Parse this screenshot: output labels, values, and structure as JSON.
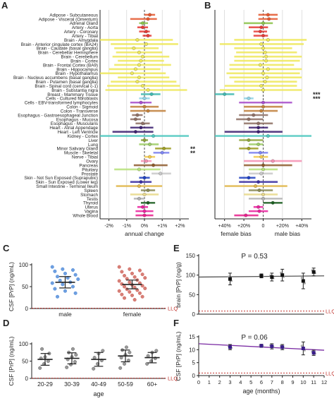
{
  "colors": {
    "yellow": "#efe85a",
    "axis": "#222222",
    "llq": "#c0302b",
    "panelF_line": "#7a2ba3",
    "gridline": "#cccccc"
  },
  "panel_labels": [
    "A",
    "B",
    "C",
    "D",
    "E",
    "F"
  ],
  "chart_data": [
    {
      "panel": "A",
      "type": "scatter",
      "subtype": "forest-plot",
      "xlabel": "annual change",
      "xlim": [
        -2.5,
        2.5
      ],
      "x_ticks": [
        -2,
        -1,
        0,
        1,
        2
      ],
      "x_tick_labels": [
        "-2%",
        "-1%",
        "0%",
        "+1%",
        "+2%"
      ],
      "grid": "vertical dashed",
      "tissues": [
        "Adipose - Subcutaneous",
        "Adipose - Visceral (Omentum)",
        "Adrenal Gland",
        "Artery - Aorta",
        "Artery - Coronary",
        "Artery - Tibial",
        "Brain - Amygdala",
        "Brain - Anterior cingulate cortex (BA24)",
        "Brain - Caudate (basal ganglia)",
        "Brain - Cerebellar Hemisphere",
        "Brain - Cerebellum",
        "Brain - Cortex",
        "Brain - Frontal Cortex (BA9)",
        "Brain - Hippocampus",
        "Brain - Hypothalamus",
        "Brain - Nucleus accumbens (basal ganglia)",
        "Brain - Putamen (basal ganglia)",
        "Brain - Spinal cord (cervical c-1)",
        "Brain - Substantia nigra",
        "Breast - Mammary Tissue",
        "Cells - Cultured fibroblasts",
        "Cells - EBV-transformed lymphocytes",
        "Colon - Sigmoid",
        "Colon - Transverse",
        "Esophagus - Gastroesophageal Junction",
        "Esophagus - Mucosa",
        "Esophagus - Muscularis",
        "Heart - Atrial Appendage",
        "Heart - Left Ventricle",
        "Kidney - Cortex",
        "Liver",
        "Lung",
        "Minor Salivary Gland",
        "Muscle - Skeletal",
        "Nerve - Tibial",
        "Ovary",
        "Pancreas",
        "Pituitary",
        "Prostate",
        "Skin - Not Sun Exposed (Suprapubic)",
        "Skin - Sun Exposed (Lower leg)",
        "Small Intestine - Terminal Ileum",
        "Spleen",
        "Stomach",
        "Testis",
        "Thyroid",
        "Uterus",
        "Vagina",
        "Whole Blood"
      ],
      "colors": [
        "#e4572e",
        "#e4572e",
        "#8bc34a",
        "#e53935",
        "#e53935",
        "#e53935",
        "#efe85a",
        "#efe85a",
        "#efe85a",
        "#efe85a",
        "#efe85a",
        "#efe85a",
        "#efe85a",
        "#efe85a",
        "#efe85a",
        "#efe85a",
        "#efe85a",
        "#efe85a",
        "#efe85a",
        "#3fb8b0",
        "#8fd3e6",
        "#a64ac9",
        "#c07f3a",
        "#c07f3a",
        "#8d6e63",
        "#8d6e63",
        "#8d6e63",
        "#3b1f6e",
        "#3b1f6e",
        "#4fc8c0",
        "#8da33a",
        "#9ccc65",
        "#9e9d24",
        "#7c83f0",
        "#f2c94c",
        "#f48fb1",
        "#8d5a2b",
        "#b6e07a",
        "#c8c8c8",
        "#1f3fbf",
        "#3a2da0",
        "#e0b64a",
        "#8a8a55",
        "#e9d98b",
        "#b0b0b0",
        "#1b5e20",
        "#e91e9c",
        "#e91e9c",
        "#e81e8c"
      ],
      "estimates": [
        0.3,
        0.2,
        -0.1,
        -0.1,
        0.1,
        0.2,
        -0.4,
        0.1,
        -0.6,
        -0.3,
        -0.1,
        -0.2,
        -0.3,
        -0.5,
        -0.7,
        -0.3,
        -0.4,
        -0.1,
        0.2,
        0.4,
        0.0,
        -0.2,
        0.0,
        0.2,
        -0.4,
        -0.5,
        -0.1,
        -0.2,
        -0.5,
        0.5,
        0.0,
        0.3,
        1.1,
        1.0,
        0.3,
        0.1,
        0.5,
        -0.3,
        0.9,
        0.0,
        -0.2,
        -0.3,
        0.2,
        0.0,
        -0.3,
        0.2,
        -0.1,
        0.0,
        0.0
      ],
      "ci_low": [
        0.0,
        -0.8,
        -0.3,
        -0.4,
        -0.3,
        -0.1,
        -2.5,
        -1.9,
        -1.7,
        -1.6,
        -1.8,
        -1.5,
        -1.7,
        -2.0,
        -2.5,
        -1.5,
        -1.9,
        -2.1,
        -2.2,
        -0.2,
        -0.3,
        -0.8,
        -0.8,
        -0.8,
        -0.7,
        -0.8,
        -0.5,
        -0.8,
        -1.8,
        -2.5,
        -0.2,
        -0.3,
        0.6,
        0.5,
        0.0,
        -0.2,
        -0.6,
        -1.7,
        0.4,
        -0.3,
        -0.8,
        -1.6,
        -0.2,
        -0.8,
        -0.6,
        -0.2,
        -0.4,
        -0.5,
        -0.5
      ],
      "ci_high": [
        0.6,
        0.7,
        0.2,
        0.2,
        0.3,
        0.4,
        1.6,
        1.9,
        0.8,
        1.0,
        1.4,
        1.1,
        1.5,
        0.9,
        1.2,
        1.4,
        1.8,
        2.0,
        2.4,
        0.9,
        0.3,
        0.4,
        0.8,
        1.2,
        -0.1,
        -0.2,
        0.3,
        0.5,
        0.5,
        2.5,
        0.2,
        0.8,
        1.5,
        1.4,
        0.6,
        0.4,
        1.3,
        0.9,
        1.5,
        0.3,
        0.4,
        1.0,
        0.6,
        0.8,
        0.0,
        0.6,
        0.2,
        0.5,
        0.5
      ],
      "significance": [
        {
          "row": 32,
          "text": "**"
        },
        {
          "row": 33,
          "text": "**"
        }
      ]
    },
    {
      "panel": "B",
      "type": "scatter",
      "subtype": "forest-plot",
      "xlabel_left": "female bias",
      "xlabel_right": "male bias",
      "xlim": [
        -50,
        50
      ],
      "x_ticks": [
        -40,
        -20,
        0,
        20,
        40
      ],
      "x_tick_labels": [
        "+40%",
        "+20%",
        "0",
        "+20%",
        "+40%"
      ],
      "estimates": [
        5,
        6,
        0,
        -2,
        -3,
        0,
        5,
        -2,
        0,
        2,
        3,
        3,
        -3,
        5,
        0,
        4,
        2,
        -2,
        0,
        -40,
        -15,
        0,
        0,
        -2,
        -10,
        -15,
        -5,
        -5,
        -5,
        5,
        -15,
        -5,
        -15,
        -3,
        -2,
        10,
        0,
        0,
        -2,
        -15,
        -5,
        -8,
        -4,
        0,
        0,
        10,
        -5,
        -4,
        -18
      ],
      "ci_low": [
        -5,
        -5,
        -20,
        -15,
        -10,
        -10,
        -30,
        -45,
        -30,
        -28,
        -30,
        -30,
        -35,
        -35,
        -38,
        -35,
        -30,
        -40,
        -45,
        -50,
        -20,
        -25,
        -20,
        -20,
        -25,
        -28,
        -20,
        -15,
        -40,
        -50,
        -25,
        -15,
        -25,
        -15,
        -10,
        -20,
        -20,
        -15,
        -15,
        -25,
        -25,
        -40,
        -15,
        -20,
        -15,
        0,
        -10,
        -15,
        -30
      ],
      "ci_high": [
        15,
        15,
        10,
        5,
        4,
        5,
        45,
        42,
        30,
        35,
        40,
        38,
        32,
        40,
        38,
        40,
        35,
        35,
        40,
        -30,
        -10,
        30,
        20,
        15,
        5,
        0,
        10,
        5,
        20,
        50,
        0,
        0,
        -5,
        5,
        5,
        40,
        30,
        15,
        10,
        -8,
        15,
        25,
        10,
        15,
        20,
        20,
        0,
        5,
        -5
      ],
      "significance": [
        {
          "row": 19,
          "text": "***"
        },
        {
          "row": 20,
          "text": "***"
        }
      ]
    },
    {
      "panel": "C",
      "type": "scatter",
      "ylabel": "CSF [PrP] (ng/mL)",
      "ylim": [
        0,
        100
      ],
      "y_ticks": [
        0,
        50,
        100
      ],
      "categories": [
        "male",
        "female"
      ],
      "colors": [
        "#3d7fd6",
        "#c9544a"
      ],
      "means": [
        60,
        55
      ],
      "sem_low": [
        47,
        45
      ],
      "sem_high": [
        73,
        65
      ],
      "points": [
        [
          95,
          90,
          88,
          85,
          80,
          77,
          73,
          70,
          67,
          64,
          60,
          58,
          55,
          50,
          45,
          40,
          35,
          27
        ],
        [
          95,
          90,
          87,
          84,
          80,
          78,
          75,
          72,
          70,
          68,
          65,
          63,
          60,
          58,
          56,
          54,
          52,
          50,
          48,
          46,
          44,
          42,
          40,
          38,
          35,
          32,
          30,
          27,
          24,
          20
        ]
      ],
      "llq_label": "LLQ",
      "llq_value": 0.8
    },
    {
      "panel": "D",
      "type": "scatter",
      "ylabel": "CSF [PrP] (ng/mL)",
      "xlabel": "age",
      "ylim": [
        0,
        100
      ],
      "y_ticks": [
        0,
        50,
        100
      ],
      "categories": [
        "20-29",
        "30-39",
        "40-49",
        "50-59",
        "60+"
      ],
      "means": [
        55,
        58,
        55,
        65,
        60
      ],
      "sem_low": [
        38,
        42,
        35,
        48,
        45
      ],
      "sem_high": [
        72,
        74,
        75,
        82,
        75
      ],
      "points": [
        [
          30,
          42,
          50,
          58,
          62,
          72,
          85
        ],
        [
          32,
          40,
          48,
          55,
          62,
          68,
          75,
          85
        ],
        [
          28,
          42,
          52,
          60,
          72,
          80
        ],
        [
          30,
          42,
          52,
          60,
          68,
          75,
          82,
          90
        ],
        [
          42,
          50,
          58,
          65,
          75,
          80
        ]
      ],
      "llq_label": "LLQ",
      "llq_value": 0.8
    },
    {
      "panel": "E",
      "type": "scatter",
      "title": "P = 0.53",
      "ylabel": "brain [PrP] (ng/g)",
      "ylim": [
        0,
        150
      ],
      "y_ticks": [
        0,
        50,
        100,
        150
      ],
      "xlim": [
        0,
        12
      ],
      "trend": [
        95,
        98
      ],
      "means_x": [
        3,
        6,
        7,
        8,
        10,
        11
      ],
      "means": [
        90,
        98,
        95,
        100,
        85,
        108
      ],
      "err": [
        15,
        5,
        10,
        15,
        20,
        10
      ],
      "llq_label": "LLQ",
      "llq_value": 8
    },
    {
      "panel": "F",
      "type": "scatter",
      "title": "P = 0.06",
      "ylabel": "CSF [PrP] (ng/mL)",
      "xlabel": "age (months)",
      "ylim": [
        0,
        15
      ],
      "y_ticks": [
        0,
        5,
        10,
        15
      ],
      "xlim": [
        0,
        12
      ],
      "x_ticks": [
        0,
        1,
        2,
        3,
        4,
        5,
        6,
        7,
        8,
        9,
        10,
        11,
        12
      ],
      "trend": [
        12.3,
        9.8
      ],
      "means_x": [
        3,
        6,
        7,
        8,
        10,
        11
      ],
      "means": [
        11.0,
        11.5,
        11.3,
        11.0,
        10.5,
        8.8
      ],
      "err": [
        1.0,
        0.6,
        1.0,
        1.0,
        2.5,
        1.0
      ],
      "llq_label": "LLQ",
      "llq_value": 1
    }
  ]
}
